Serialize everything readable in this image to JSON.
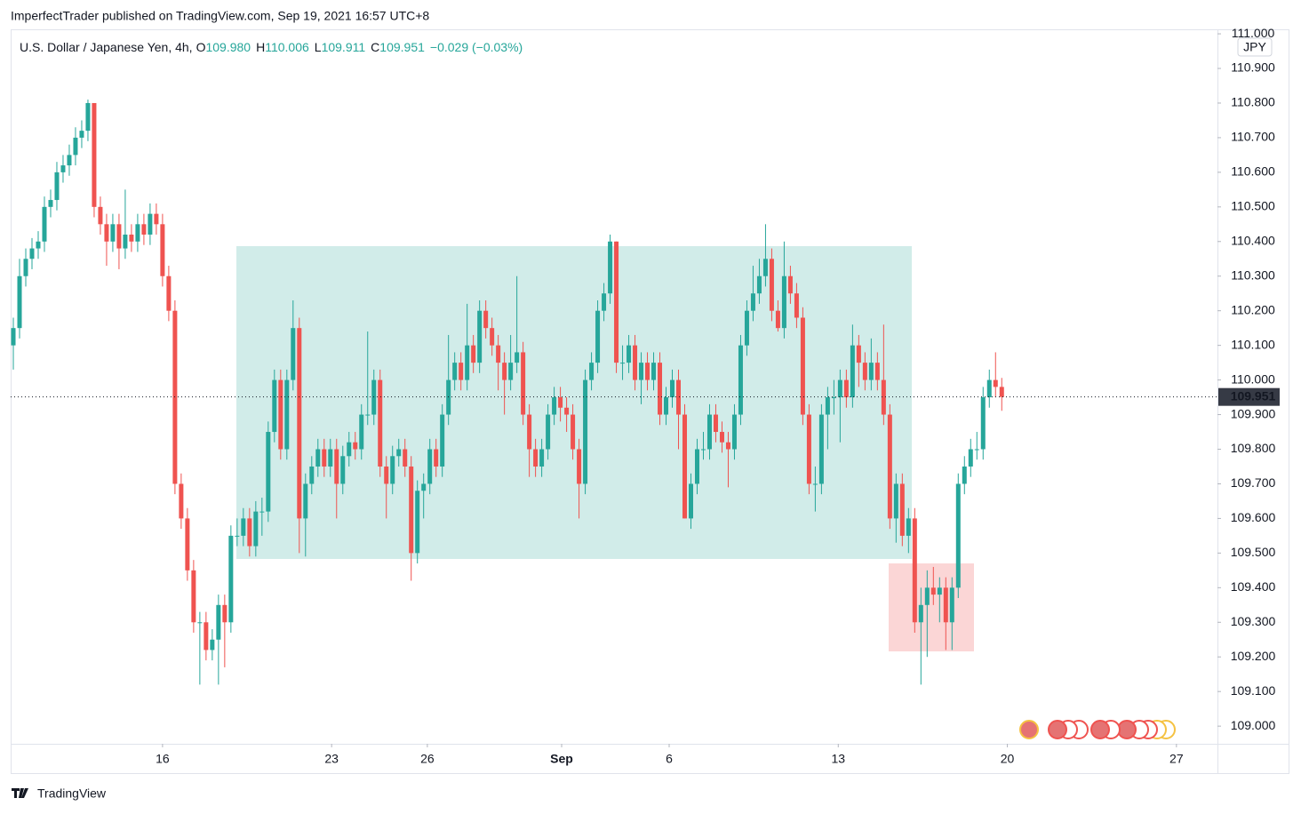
{
  "header": {
    "byline": "ImperfectTrader published on TradingView.com, Sep 19, 2021 16:57 UTC+8",
    "symbol": "U.S. Dollar / Japanese Yen, 4h,",
    "ohlc": [
      {
        "key": "O",
        "value": "109.980"
      },
      {
        "key": "H",
        "value": "110.006"
      },
      {
        "key": "L",
        "value": "109.911"
      },
      {
        "key": "C",
        "value": "109.951"
      }
    ],
    "change": "−0.029 (−0.03%)",
    "currency": "JPY",
    "brand": "TradingView"
  },
  "chart_data": {
    "type": "candlestick",
    "up_color": "#26a69a",
    "down_color": "#ef5350",
    "last_price": 109.951,
    "xlim": [
      -0.43,
      193.7
    ],
    "xticks": [
      {
        "value": 24.0,
        "label": "16"
      },
      {
        "value": 51.2,
        "label": "23"
      },
      {
        "value": 66.6,
        "label": "26"
      },
      {
        "value": 88.2,
        "label": "Sep"
      },
      {
        "value": 105.5,
        "label": "6"
      },
      {
        "value": 132.7,
        "label": "13"
      },
      {
        "value": 159.9,
        "label": "20"
      },
      {
        "value": 187.1,
        "label": "27"
      }
    ],
    "ylim": [
      108.949,
      111.013
    ],
    "yticks": [
      {
        "value": 109.0,
        "label": "109.000"
      },
      {
        "value": 109.1,
        "label": "109.100"
      },
      {
        "value": 109.2,
        "label": "109.200"
      },
      {
        "value": 109.3,
        "label": "109.300"
      },
      {
        "value": 109.4,
        "label": "109.400"
      },
      {
        "value": 109.5,
        "label": "109.500"
      },
      {
        "value": 109.6,
        "label": "109.600"
      },
      {
        "value": 109.7,
        "label": "109.700"
      },
      {
        "value": 109.8,
        "label": "109.800"
      },
      {
        "value": 109.9,
        "label": "109.900"
      },
      {
        "value": 110.0,
        "label": "110.000"
      },
      {
        "value": 110.1,
        "label": "110.100"
      },
      {
        "value": 110.2,
        "label": "110.200"
      },
      {
        "value": 110.3,
        "label": "110.300"
      },
      {
        "value": 110.4,
        "label": "110.400"
      },
      {
        "value": 110.5,
        "label": "110.500"
      },
      {
        "value": 110.6,
        "label": "110.600"
      },
      {
        "value": 110.7,
        "label": "110.700"
      },
      {
        "value": 110.8,
        "label": "110.800"
      },
      {
        "value": 110.9,
        "label": "110.900"
      },
      {
        "value": 111.0,
        "label": "111.000"
      }
    ],
    "open": [
      110.1,
      110.15,
      110.3,
      110.35,
      110.38,
      110.4,
      110.5,
      110.52,
      110.6,
      110.62,
      110.65,
      110.7,
      110.72,
      110.8,
      110.5,
      110.45,
      110.4,
      110.45,
      110.38,
      110.42,
      110.4,
      110.45,
      110.42,
      110.48,
      110.45,
      110.3,
      110.2,
      109.7,
      109.6,
      109.45,
      109.3,
      109.3,
      109.22,
      109.25,
      109.35,
      109.3,
      109.55,
      109.55,
      109.6,
      109.52,
      109.62,
      109.62,
      109.85,
      110.0,
      109.8,
      110.0,
      110.15,
      109.6,
      109.7,
      109.75,
      109.8,
      109.75,
      109.8,
      109.7,
      109.78,
      109.82,
      109.8,
      109.9,
      109.9,
      110.0,
      109.75,
      109.7,
      109.78,
      109.8,
      109.75,
      109.5,
      109.68,
      109.7,
      109.8,
      109.75,
      109.9,
      110.0,
      110.05,
      110.0,
      110.1,
      110.05,
      110.2,
      110.15,
      110.1,
      110.05,
      110.0,
      110.05,
      110.08,
      109.9,
      109.8,
      109.75,
      109.8,
      109.9,
      109.95,
      109.92,
      109.9,
      109.8,
      109.7,
      110.0,
      110.05,
      110.2,
      110.25,
      110.4,
      110.05,
      110.05,
      110.1,
      110.0,
      110.05,
      110.0,
      110.05,
      109.9,
      109.95,
      110.0,
      109.9,
      109.6,
      109.7,
      109.8,
      109.8,
      109.9,
      109.85,
      109.82,
      109.8,
      109.9,
      110.1,
      110.2,
      110.25,
      110.3,
      110.35,
      110.2,
      110.15,
      110.3,
      110.25,
      110.18,
      109.9,
      109.7,
      109.7,
      109.9,
      109.95,
      109.95,
      110.0,
      109.95,
      110.1,
      110.05,
      110.0,
      110.05,
      110.0,
      109.9,
      109.6,
      109.7,
      109.55,
      109.6,
      109.3,
      109.35,
      109.4,
      109.38,
      109.4,
      109.3,
      109.4,
      109.7,
      109.75,
      109.8,
      109.8,
      109.95,
      110.0,
      109.98
    ],
    "high": [
      110.18,
      110.35,
      110.38,
      110.41,
      110.43,
      110.53,
      110.55,
      110.63,
      110.65,
      110.68,
      110.73,
      110.75,
      110.81,
      110.8,
      110.53,
      110.48,
      110.48,
      110.48,
      110.55,
      110.45,
      110.48,
      110.48,
      110.51,
      110.51,
      110.48,
      110.33,
      110.23,
      109.73,
      109.63,
      109.48,
      109.33,
      109.33,
      109.28,
      109.38,
      109.38,
      109.58,
      109.6,
      109.63,
      109.63,
      109.65,
      109.66,
      109.88,
      110.03,
      110.03,
      110.03,
      110.23,
      110.18,
      109.73,
      109.78,
      109.83,
      109.83,
      109.83,
      109.83,
      109.81,
      109.85,
      109.85,
      109.93,
      110.14,
      110.03,
      110.03,
      109.78,
      109.81,
      109.83,
      109.83,
      109.78,
      109.71,
      109.73,
      109.83,
      109.83,
      109.93,
      110.13,
      110.08,
      110.08,
      110.22,
      110.13,
      110.23,
      110.23,
      110.18,
      110.13,
      110.08,
      110.13,
      110.3,
      110.11,
      109.93,
      109.83,
      109.83,
      109.93,
      109.98,
      109.98,
      109.95,
      109.93,
      109.83,
      110.03,
      110.08,
      110.23,
      110.28,
      110.42,
      110.4,
      110.1,
      110.13,
      110.13,
      110.08,
      110.08,
      110.08,
      110.08,
      109.98,
      110.03,
      110.03,
      109.93,
      109.73,
      109.83,
      109.85,
      109.93,
      109.93,
      109.88,
      109.85,
      109.93,
      110.13,
      110.23,
      110.33,
      110.35,
      110.45,
      110.38,
      110.23,
      110.4,
      110.33,
      110.28,
      110.21,
      109.93,
      109.75,
      109.93,
      109.98,
      110.0,
      110.03,
      110.03,
      110.16,
      110.13,
      110.08,
      110.12,
      110.08,
      110.16,
      109.93,
      109.73,
      109.73,
      109.63,
      109.63,
      109.4,
      109.45,
      109.46,
      109.43,
      109.43,
      109.43,
      109.73,
      109.78,
      109.83,
      109.85,
      109.98,
      110.03,
      110.08,
      110.006
    ],
    "low": [
      110.03,
      110.12,
      110.27,
      110.32,
      110.35,
      110.37,
      110.47,
      110.49,
      110.57,
      110.59,
      110.62,
      110.67,
      110.69,
      110.47,
      110.42,
      110.33,
      110.37,
      110.32,
      110.35,
      110.37,
      110.37,
      110.39,
      110.39,
      110.42,
      110.27,
      110.17,
      109.67,
      109.57,
      109.42,
      109.27,
      109.12,
      109.19,
      109.19,
      109.12,
      109.17,
      109.27,
      109.52,
      109.52,
      109.49,
      109.49,
      109.55,
      109.59,
      109.82,
      109.77,
      109.77,
      109.97,
      109.5,
      109.49,
      109.67,
      109.72,
      109.72,
      109.72,
      109.6,
      109.67,
      109.75,
      109.77,
      109.77,
      109.87,
      109.87,
      109.72,
      109.6,
      109.67,
      109.75,
      109.72,
      109.42,
      109.47,
      109.6,
      109.67,
      109.72,
      109.72,
      109.87,
      109.97,
      109.97,
      109.97,
      110.02,
      110.02,
      110.12,
      110.07,
      109.97,
      109.9,
      109.97,
      110.02,
      109.87,
      109.72,
      109.72,
      109.72,
      109.77,
      109.87,
      109.88,
      109.85,
      109.77,
      109.6,
      109.67,
      109.97,
      110.02,
      110.17,
      110.22,
      110.02,
      110.0,
      110.02,
      109.97,
      109.93,
      109.97,
      109.97,
      109.87,
      109.87,
      109.92,
      109.8,
      109.6,
      109.57,
      109.67,
      109.77,
      109.77,
      109.82,
      109.79,
      109.69,
      109.77,
      109.87,
      110.07,
      110.17,
      110.22,
      110.27,
      110.17,
      110.14,
      110.12,
      110.22,
      110.15,
      109.87,
      109.67,
      109.62,
      109.67,
      109.8,
      109.9,
      109.82,
      109.92,
      109.92,
      109.98,
      109.97,
      109.97,
      109.97,
      109.87,
      109.57,
      109.53,
      109.52,
      109.5,
      109.27,
      109.12,
      109.2,
      109.35,
      109.3,
      109.22,
      109.22,
      109.37,
      109.67,
      109.72,
      109.77,
      109.77,
      109.92,
      109.95,
      109.911
    ],
    "close": [
      110.15,
      110.3,
      110.35,
      110.38,
      110.4,
      110.5,
      110.52,
      110.6,
      110.62,
      110.65,
      110.7,
      110.72,
      110.8,
      110.5,
      110.45,
      110.4,
      110.45,
      110.38,
      110.42,
      110.4,
      110.45,
      110.42,
      110.48,
      110.45,
      110.3,
      110.2,
      109.7,
      109.6,
      109.45,
      109.3,
      109.3,
      109.22,
      109.25,
      109.35,
      109.3,
      109.55,
      109.55,
      109.6,
      109.52,
      109.62,
      109.62,
      109.85,
      110.0,
      109.8,
      110.0,
      110.15,
      109.6,
      109.7,
      109.75,
      109.8,
      109.75,
      109.8,
      109.7,
      109.78,
      109.82,
      109.8,
      109.9,
      109.9,
      110.0,
      109.75,
      109.7,
      109.78,
      109.8,
      109.75,
      109.5,
      109.68,
      109.7,
      109.8,
      109.75,
      109.9,
      110.0,
      110.05,
      110.0,
      110.1,
      110.05,
      110.2,
      110.15,
      110.1,
      110.05,
      110.0,
      110.05,
      110.08,
      109.9,
      109.8,
      109.75,
      109.8,
      109.9,
      109.95,
      109.92,
      109.9,
      109.8,
      109.7,
      110.0,
      110.05,
      110.2,
      110.25,
      110.4,
      110.05,
      110.05,
      110.1,
      110.0,
      110.05,
      110.0,
      110.05,
      109.9,
      109.95,
      110.0,
      109.9,
      109.6,
      109.7,
      109.8,
      109.8,
      109.9,
      109.85,
      109.82,
      109.8,
      109.9,
      110.1,
      110.2,
      110.25,
      110.3,
      110.35,
      110.2,
      110.15,
      110.3,
      110.25,
      110.18,
      109.9,
      109.7,
      109.7,
      109.9,
      109.95,
      109.95,
      110.0,
      109.95,
      110.1,
      110.05,
      110.0,
      110.05,
      110.0,
      109.9,
      109.6,
      109.7,
      109.55,
      109.6,
      109.3,
      109.35,
      109.4,
      109.38,
      109.4,
      109.3,
      109.4,
      109.7,
      109.75,
      109.8,
      109.8,
      109.95,
      110.0,
      109.98,
      109.951
    ]
  }
}
